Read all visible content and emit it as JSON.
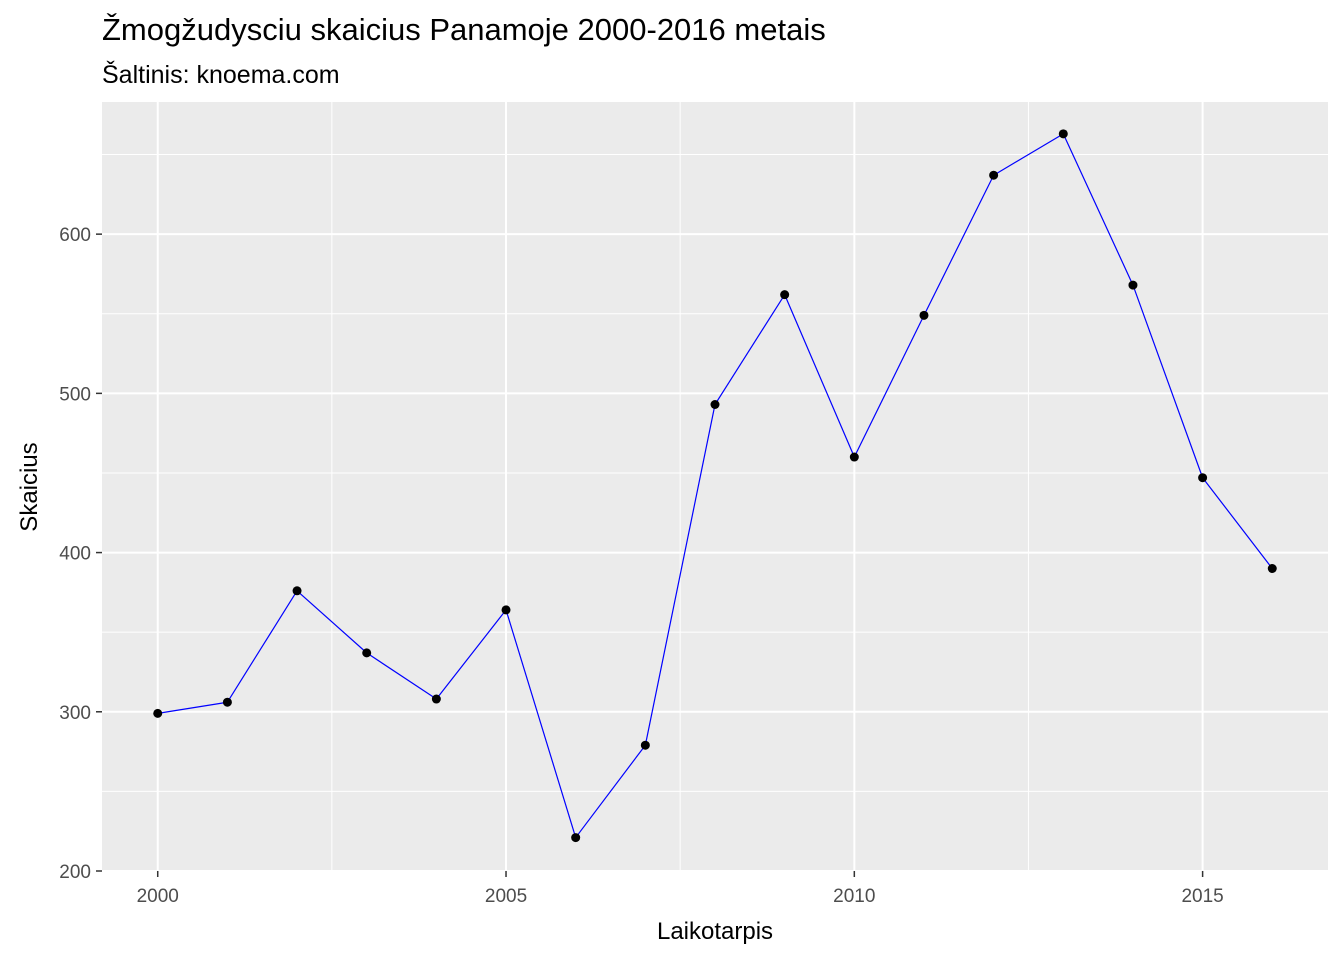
{
  "chart_data": {
    "type": "line",
    "title": "Žmogžudysciu skaicius Panamoje 2000-2016 metais",
    "subtitle": "Šaltinis: knoema.com",
    "xlabel": "Laikotarpis",
    "ylabel": "Skaicius",
    "x": [
      2000,
      2001,
      2002,
      2003,
      2004,
      2005,
      2006,
      2007,
      2008,
      2009,
      2010,
      2011,
      2012,
      2013,
      2014,
      2015,
      2016
    ],
    "values": [
      299,
      306,
      376,
      337,
      308,
      364,
      221,
      279,
      493,
      562,
      460,
      549,
      637,
      663,
      568,
      447,
      390
    ],
    "xlim": [
      1999.2,
      2016.8
    ],
    "ylim": [
      200,
      683
    ],
    "x_ticks": [
      2000,
      2005,
      2010,
      2015
    ],
    "y_ticks": [
      200,
      300,
      400,
      500,
      600
    ],
    "grid": true,
    "line_color": "#0000ff",
    "point_color": "#000000",
    "panel_background": "#ebebeb",
    "grid_color": "#ffffff"
  }
}
